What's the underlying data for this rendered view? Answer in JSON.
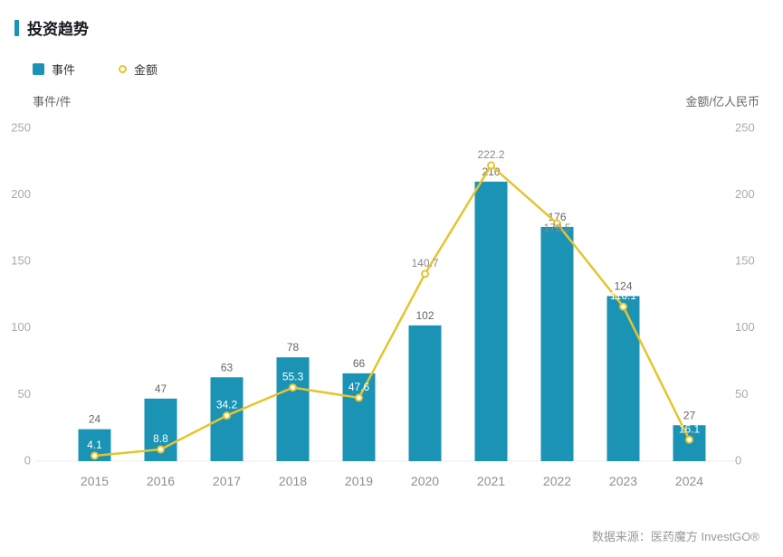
{
  "page": {
    "title": "投资趋势",
    "footer": "数据来源：医药魔方 InvestGO®"
  },
  "legend": [
    {
      "label": "事件",
      "type": "bar"
    },
    {
      "label": "金额",
      "type": "line"
    }
  ],
  "axes": {
    "left_title": "事件/件",
    "right_title": "金额/亿人民币",
    "ticks": [
      0,
      50,
      100,
      150,
      200,
      250
    ]
  },
  "colors": {
    "bar": "#1a93b4",
    "line": "#e6c42e",
    "accent": "#1a93b4",
    "axis_text": "#aaaaaa",
    "x_axis_text": "#8f8f8f",
    "bar_label": "#666666",
    "line_label_on_bar": "#ffffff",
    "line_label_on_bg": "#8a8a8a",
    "baseline": "#ececec"
  },
  "chart_data": {
    "type": "bar+line",
    "title": "投资趋势",
    "categories": [
      "2015",
      "2016",
      "2017",
      "2018",
      "2019",
      "2020",
      "2021",
      "2022",
      "2023",
      "2024"
    ],
    "series": [
      {
        "name": "事件",
        "type": "bar",
        "values": [
          24,
          47,
          63,
          78,
          66,
          102,
          210,
          176,
          124,
          27
        ]
      },
      {
        "name": "金额",
        "type": "line",
        "values": [
          4.1,
          8.8,
          34.2,
          55.3,
          47.6,
          140.7,
          222.2,
          178.5,
          116.1,
          16.1
        ]
      }
    ],
    "ylabel_left": "事件/件",
    "ylabel_right": "金额/亿人民币",
    "ylim": [
      0,
      250
    ],
    "grid": false,
    "legend_position": "top-left"
  }
}
